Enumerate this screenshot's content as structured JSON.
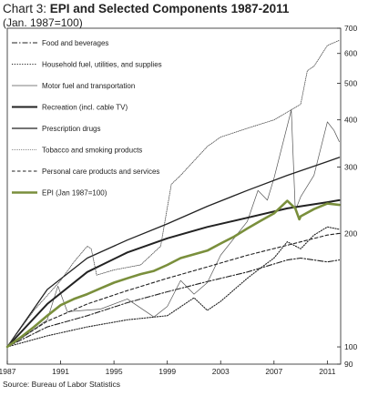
{
  "title": {
    "prefix": "Chart 3: ",
    "main": "EPI and Selected Components 1987-2011",
    "subtitle": "(Jan. 1987=100)"
  },
  "source": "Source: Bureau of Labor Statistics",
  "colors": {
    "epi": "#7a8f3c",
    "series": "#222222",
    "frame": "#222222"
  },
  "chart_data": {
    "type": "line",
    "title": "Chart 3: EPI and Selected Components 1987-2011",
    "subtitle": "(Jan. 1987=100)",
    "y_scale": "log",
    "ylim": [
      90,
      700
    ],
    "xlim": [
      1987,
      2012
    ],
    "x_ticks": [
      "1987",
      "1991",
      "1995",
      "1999",
      "2003",
      "2007",
      "2011"
    ],
    "y_ticks": [
      "90",
      "100",
      "200",
      "300",
      "400",
      "500",
      "600",
      "700"
    ],
    "y_axis_side": "right",
    "grid": false,
    "legend_position": "top-left",
    "series": [
      {
        "name": "Food and beverages",
        "dash": "dashdot",
        "x": [
          1987,
          1990,
          1993,
          1996,
          1999,
          2002,
          2005,
          2008,
          2009,
          2011,
          2011.9
        ],
        "y": [
          100,
          113,
          121,
          131,
          140,
          149,
          158,
          170,
          172,
          168,
          170
        ]
      },
      {
        "name": "Household fuel, utilities, and supplies",
        "dash": "dotted",
        "x": [
          1987,
          1990,
          1993,
          1996,
          1999,
          2001,
          2002,
          2003,
          2005,
          2006,
          2007,
          2008,
          2009,
          2010,
          2011,
          2011.9
        ],
        "y": [
          100,
          107,
          113,
          118,
          121,
          135,
          125,
          132,
          152,
          162,
          172,
          190,
          182,
          198,
          208,
          205
        ]
      },
      {
        "name": "Motor fuel and transportation",
        "dash": "solid-thin",
        "x": [
          1987,
          1988,
          1990,
          1990.8,
          1991.5,
          1994,
          1996,
          1998,
          1999,
          2000,
          2001,
          2002,
          2003,
          2005,
          2005.8,
          2006.5,
          2007,
          2008.3,
          2008.6,
          2009,
          2010,
          2011,
          2011.5,
          2011.9
        ],
        "y": [
          100,
          105,
          118,
          145,
          124,
          126,
          134,
          120,
          128,
          150,
          138,
          148,
          175,
          215,
          260,
          245,
          280,
          425,
          230,
          250,
          285,
          395,
          375,
          350
        ]
      },
      {
        "name": "Recreation (incl. cable TV)",
        "dash": "solid-thick",
        "x": [
          1987,
          1990,
          1993,
          1996,
          1999,
          2002,
          2005,
          2008,
          2011,
          2011.9
        ],
        "y": [
          100,
          130,
          158,
          178,
          194,
          208,
          220,
          233,
          242,
          245
        ]
      },
      {
        "name": "Prescription drugs",
        "dash": "solid",
        "x": [
          1987,
          1990,
          1993,
          1996,
          1999,
          2002,
          2005,
          2008,
          2011,
          2011.9
        ],
        "y": [
          100,
          142,
          172,
          192,
          212,
          236,
          260,
          285,
          310,
          318
        ]
      },
      {
        "name": "Tobacco and smoking products",
        "dash": "dotted-fine",
        "x": [
          1987,
          1989,
          1991,
          1992,
          1993,
          1993.3,
          1993.7,
          1995,
          1997,
          1998.5,
          1999.3,
          2000,
          2002,
          2003,
          2005,
          2007,
          2009,
          2009.5,
          2010,
          2011,
          2011.9
        ],
        "y": [
          100,
          125,
          150,
          168,
          185,
          182,
          155,
          160,
          165,
          185,
          270,
          285,
          340,
          360,
          380,
          400,
          440,
          540,
          555,
          630,
          650
        ]
      },
      {
        "name": "Personal care products and services",
        "dash": "dashed",
        "x": [
          1987,
          1990,
          1993,
          1996,
          1999,
          2002,
          2005,
          2008,
          2011,
          2011.9
        ],
        "y": [
          100,
          117,
          130,
          141,
          152,
          163,
          175,
          186,
          198,
          200
        ]
      },
      {
        "name": "EPI (Jan 1987=100)",
        "dash": "epi",
        "x": [
          1987,
          1988,
          1989,
          1990,
          1991,
          1992,
          1993,
          1994,
          1995,
          1996,
          1997,
          1998,
          1999,
          2000,
          2001,
          2002,
          2003,
          2004,
          2005,
          2006,
          2007,
          2008,
          2008.6,
          2008.9,
          2009,
          2010,
          2011,
          2011.9
        ],
        "y": [
          100,
          106,
          113,
          121,
          129,
          134,
          138,
          143,
          148,
          152,
          156,
          159,
          165,
          172,
          176,
          180,
          188,
          196,
          206,
          216,
          226,
          244,
          233,
          218,
          222,
          232,
          240,
          238
        ]
      }
    ]
  }
}
